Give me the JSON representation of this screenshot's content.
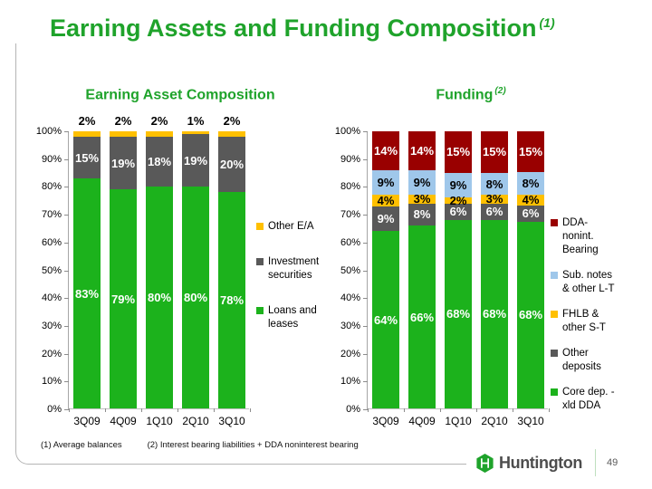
{
  "slide": {
    "title": "Earning Assets and Funding Composition",
    "title_sup": "(1)",
    "footnotes": [
      "(1)  Average balances",
      "(2) Interest bearing liabilities + DDA noninterest bearing"
    ],
    "logo_text": "Huntington",
    "page_number": "49"
  },
  "colors": {
    "title_green": "#1FA32B",
    "bar_green": "#1CB21C",
    "bar_gray": "#595959",
    "bar_yellow": "#FFC000",
    "bar_blue": "#9FC7EA",
    "bar_darkred": "#990000"
  },
  "chart_data": [
    {
      "type": "stacked-bar",
      "title": "Earning Asset Composition",
      "title_sup": "",
      "categories": [
        "3Q09",
        "4Q09",
        "1Q10",
        "2Q10",
        "3Q10"
      ],
      "ylim": [
        0,
        100
      ],
      "ytick_step": 10,
      "ytick_suffix": "%",
      "bar_label_suffix": "%",
      "grid": false,
      "legend_position": "right",
      "series": [
        {
          "name": "Loans and leases",
          "color": "#1CB21C",
          "label_color": "#FFFFFF",
          "label_position": "inside",
          "values": [
            83,
            79,
            80,
            80,
            78
          ]
        },
        {
          "name": "Investment securities",
          "color": "#595959",
          "label_color": "#FFFFFF",
          "label_position": "inside",
          "values": [
            15,
            19,
            18,
            19,
            20
          ]
        },
        {
          "name": "Other E/A",
          "color": "#FFC000",
          "label_color": "#000000",
          "label_position": "above",
          "values": [
            2,
            2,
            2,
            1,
            2
          ]
        }
      ]
    },
    {
      "type": "stacked-bar",
      "title": "Funding",
      "title_sup": "(2)",
      "categories": [
        "3Q09",
        "4Q09",
        "1Q10",
        "2Q10",
        "3Q10"
      ],
      "ylim": [
        0,
        100
      ],
      "ytick_step": 10,
      "ytick_suffix": "%",
      "bar_label_suffix": "%",
      "grid": false,
      "legend_position": "right",
      "series": [
        {
          "name": "Core dep. - xld DDA",
          "color": "#1CB21C",
          "label_color": "#FFFFFF",
          "label_position": "inside",
          "values": [
            64,
            66,
            68,
            68,
            68
          ]
        },
        {
          "name": "Other deposits",
          "color": "#595959",
          "label_color": "#FFFFFF",
          "label_position": "inside",
          "values": [
            9,
            8,
            6,
            6,
            6
          ]
        },
        {
          "name": "FHLB & other S-T",
          "color": "#FFC000",
          "label_color": "#000000",
          "label_position": "inside",
          "values": [
            4,
            3,
            2,
            3,
            4
          ]
        },
        {
          "name": "Sub. notes & other L-T",
          "color": "#9FC7EA",
          "label_color": "#000000",
          "label_position": "inside",
          "values": [
            9,
            9,
            9,
            8,
            8
          ]
        },
        {
          "name": "DDA-nonint. Bearing",
          "color": "#990000",
          "label_color": "#FFFFFF",
          "label_position": "inside",
          "values": [
            14,
            14,
            15,
            15,
            15
          ]
        }
      ]
    }
  ]
}
